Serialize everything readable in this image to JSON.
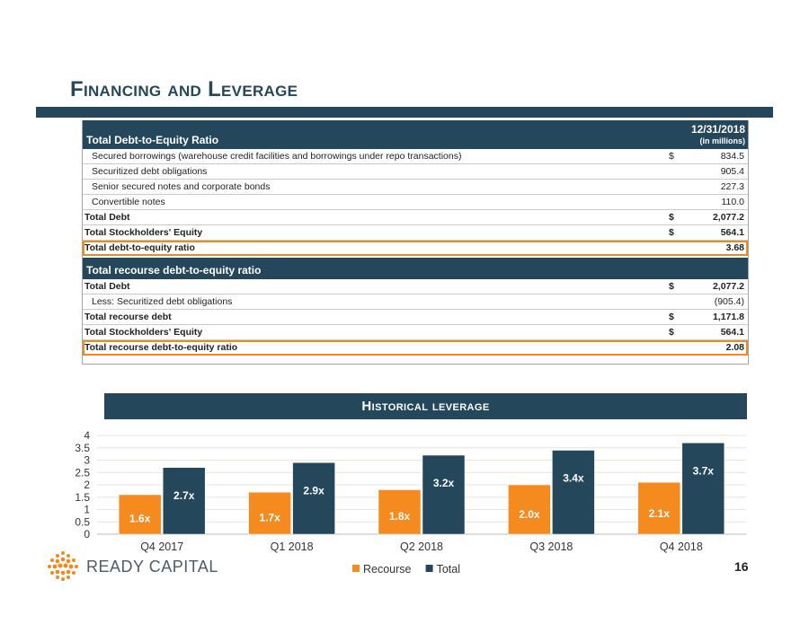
{
  "header": {
    "title": "Financing and Leverage"
  },
  "table": {
    "header_label": "Total Debt-to-Equity Ratio",
    "date": "12/31/2018",
    "unit": "(in millions)",
    "rows": [
      {
        "label": "Secured borrowings (warehouse credit facilities and borrowings under repo transactions)",
        "cur": "$",
        "value": "834.5"
      },
      {
        "label": "Securitized debt obligations",
        "cur": "",
        "value": "905.4"
      },
      {
        "label": "Senior secured notes and corporate bonds",
        "cur": "",
        "value": "227.3"
      },
      {
        "label": "Convertible notes",
        "cur": "",
        "value": "110.0"
      },
      {
        "label": "Total Debt",
        "cur": "$",
        "value": "2,077.2"
      },
      {
        "label": "Total Stockholders' Equity",
        "cur": "$",
        "value": "564.1"
      },
      {
        "label": "Total debt-to-equity ratio",
        "cur": "",
        "value": "3.68"
      }
    ],
    "section2_label": "Total recourse debt-to-equity ratio",
    "rows2": [
      {
        "label": "Total Debt",
        "cur": "$",
        "value": "2,077.2"
      },
      {
        "label": "Less: Securitized debt obligations",
        "cur": "",
        "value": "(905.4)"
      },
      {
        "label": "Total recourse debt",
        "cur": "$",
        "value": "1,171.8"
      },
      {
        "label": "Total Stockholders' Equity",
        "cur": "$",
        "value": "564.1"
      },
      {
        "label": "Total recourse debt-to-equity ratio",
        "cur": "",
        "value": "2.08"
      }
    ]
  },
  "chart_data": {
    "type": "bar",
    "title": "Historical leverage",
    "categories": [
      "Q4 2017",
      "Q1 2018",
      "Q2 2018",
      "Q3 2018",
      "Q4 2018"
    ],
    "series": [
      {
        "name": "Recourse",
        "color": "#f58a1f",
        "values": [
          1.6,
          1.7,
          1.8,
          2.0,
          2.1
        ],
        "labels": [
          "1.6x",
          "1.7x",
          "1.8x",
          "2.0x",
          "2.1x"
        ]
      },
      {
        "name": "Total",
        "color": "#25475c",
        "values": [
          2.7,
          2.9,
          3.2,
          3.4,
          3.7
        ],
        "labels": [
          "2.7x",
          "2.9x",
          "3.2x",
          "3.4x",
          "3.7x"
        ]
      }
    ],
    "ylim": [
      0,
      4
    ],
    "yticks": [
      "0",
      "0.5",
      "1",
      "1.5",
      "2",
      "2.5",
      "3",
      "3.5",
      "4"
    ],
    "ytick_values": [
      0,
      0.5,
      1,
      1.5,
      2,
      2.5,
      3,
      3.5,
      4
    ],
    "legend": "bottom-center",
    "grid": true
  },
  "footer": {
    "company": "READY CAPITAL",
    "page_number": "16"
  }
}
